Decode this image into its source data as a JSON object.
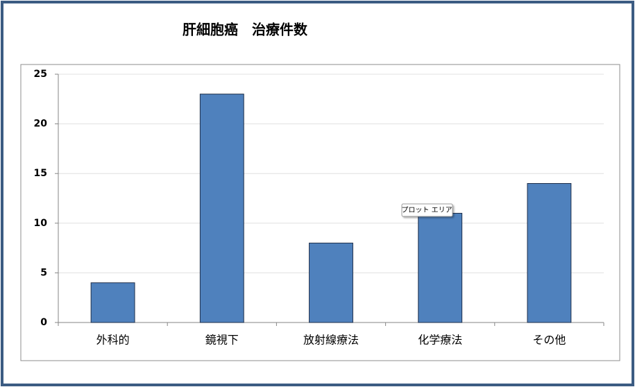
{
  "chart_data": {
    "type": "bar",
    "title": "肝細胞癌　治療件数",
    "categories": [
      "外科的",
      "鏡視下",
      "放射線療法",
      "化学療法",
      "その他"
    ],
    "values": [
      4,
      23,
      8,
      11,
      14
    ],
    "color": "#4f81bd",
    "ylim": [
      0,
      25
    ],
    "yticks": [
      0,
      5,
      10,
      15,
      20,
      25
    ],
    "grid": true,
    "tooltip": "プロット エリア"
  }
}
